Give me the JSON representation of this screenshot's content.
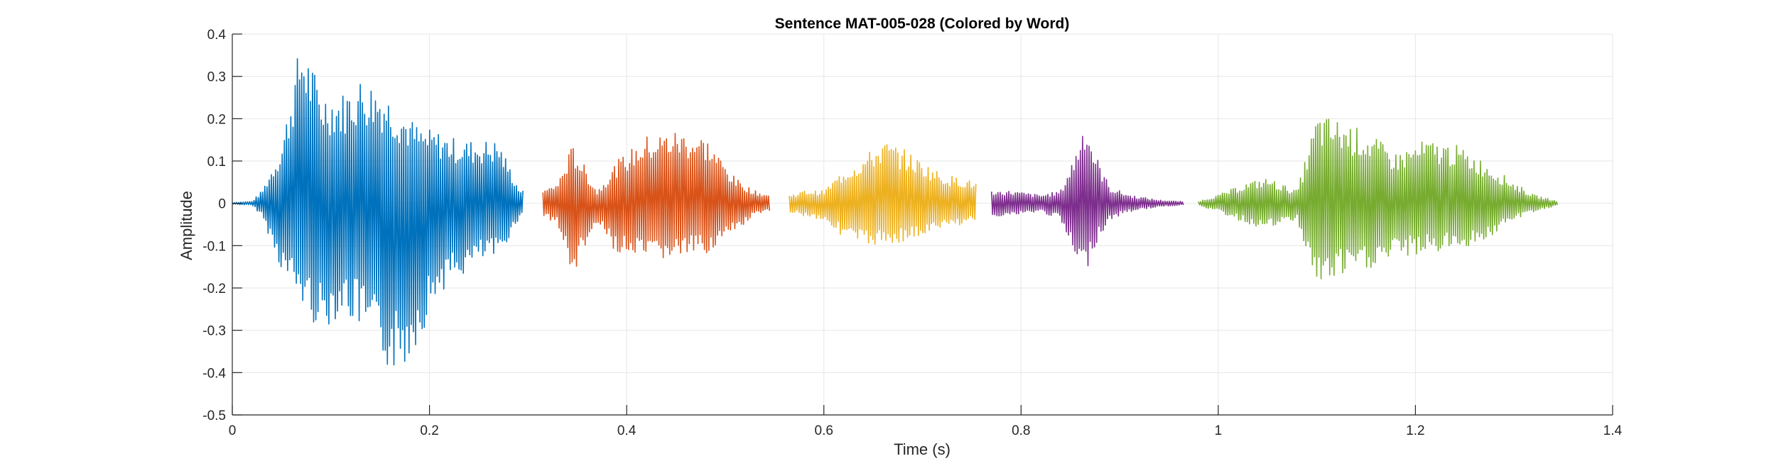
{
  "chart_data": {
    "type": "line",
    "title": "Sentence MAT-005-028 (Colored by Word)",
    "xlabel": "Time (s)",
    "ylabel": "Amplitude",
    "xlim": [
      0,
      1.4
    ],
    "ylim": [
      -0.5,
      0.4
    ],
    "x_ticks": [
      0,
      0.2,
      0.4,
      0.6,
      0.8,
      1,
      1.2,
      1.4
    ],
    "x_tick_labels": [
      "0",
      "0.2",
      "0.4",
      "0.6",
      "0.8",
      "1",
      "1.2",
      "1.4"
    ],
    "y_ticks": [
      -0.5,
      -0.4,
      -0.3,
      -0.2,
      -0.1,
      0,
      0.1,
      0.2,
      0.3,
      0.4
    ],
    "y_tick_labels": [
      "-0.5",
      "-0.4",
      "-0.3",
      "-0.2",
      "-0.1",
      "0",
      "0.1",
      "0.2",
      "0.3",
      "0.4"
    ],
    "grid": true,
    "series": [
      {
        "color": "#0072BD",
        "t_start": 0.0,
        "t_end": 0.295,
        "envelope_x": [
          0.0,
          0.02,
          0.03,
          0.05,
          0.07,
          0.09,
          0.11,
          0.13,
          0.15,
          0.17,
          0.19,
          0.21,
          0.23,
          0.25,
          0.27,
          0.29,
          0.295
        ],
        "envelope_max": [
          0.002,
          0.005,
          0.03,
          0.14,
          0.4,
          0.27,
          0.26,
          0.3,
          0.28,
          0.23,
          0.18,
          0.17,
          0.15,
          0.15,
          0.15,
          0.04,
          0.03
        ],
        "envelope_min": [
          -0.002,
          -0.005,
          -0.03,
          -0.16,
          -0.24,
          -0.31,
          -0.26,
          -0.3,
          -0.38,
          -0.41,
          -0.32,
          -0.21,
          -0.18,
          -0.14,
          -0.13,
          -0.04,
          -0.03
        ]
      },
      {
        "color": "#D95319",
        "t_start": 0.315,
        "t_end": 0.545,
        "envelope_x": [
          0.315,
          0.33,
          0.345,
          0.355,
          0.37,
          0.39,
          0.42,
          0.45,
          0.48,
          0.51,
          0.53,
          0.545
        ],
        "envelope_max": [
          0.03,
          0.05,
          0.14,
          0.1,
          0.03,
          0.1,
          0.16,
          0.175,
          0.16,
          0.06,
          0.03,
          0.02
        ],
        "envelope_min": [
          -0.03,
          -0.05,
          -0.18,
          -0.12,
          -0.05,
          -0.12,
          -0.14,
          -0.13,
          -0.12,
          -0.07,
          -0.03,
          -0.02
        ]
      },
      {
        "color": "#EDB120",
        "t_start": 0.565,
        "t_end": 0.755,
        "envelope_x": [
          0.565,
          0.58,
          0.6,
          0.62,
          0.64,
          0.66,
          0.68,
          0.7,
          0.72,
          0.74,
          0.755
        ],
        "envelope_max": [
          0.02,
          0.03,
          0.03,
          0.08,
          0.11,
          0.15,
          0.13,
          0.1,
          0.07,
          0.06,
          0.05
        ],
        "envelope_min": [
          -0.02,
          -0.03,
          -0.04,
          -0.08,
          -0.1,
          -0.1,
          -0.09,
          -0.08,
          -0.06,
          -0.05,
          -0.04
        ]
      },
      {
        "color": "#7E2F8E",
        "t_start": 0.77,
        "t_end": 0.965,
        "envelope_x": [
          0.77,
          0.79,
          0.82,
          0.84,
          0.855,
          0.865,
          0.875,
          0.89,
          0.91,
          0.94,
          0.965
        ],
        "envelope_max": [
          0.03,
          0.03,
          0.02,
          0.03,
          0.12,
          0.21,
          0.12,
          0.04,
          0.02,
          0.008,
          0.004
        ],
        "envelope_min": [
          -0.03,
          -0.03,
          -0.02,
          -0.04,
          -0.14,
          -0.17,
          -0.1,
          -0.04,
          -0.02,
          -0.008,
          -0.004
        ]
      },
      {
        "color": "#77AC30",
        "t_start": 0.98,
        "t_end": 1.345,
        "envelope_x": [
          0.98,
          1.0,
          1.03,
          1.05,
          1.08,
          1.1,
          1.12,
          1.15,
          1.18,
          1.21,
          1.24,
          1.27,
          1.3,
          1.32,
          1.345
        ],
        "envelope_max": [
          0.005,
          0.02,
          0.05,
          0.06,
          0.03,
          0.21,
          0.2,
          0.17,
          0.12,
          0.15,
          0.14,
          0.1,
          0.05,
          0.02,
          0.005
        ],
        "envelope_min": [
          -0.005,
          -0.02,
          -0.05,
          -0.06,
          -0.04,
          -0.2,
          -0.18,
          -0.16,
          -0.13,
          -0.12,
          -0.11,
          -0.09,
          -0.04,
          -0.02,
          -0.005
        ]
      }
    ]
  }
}
